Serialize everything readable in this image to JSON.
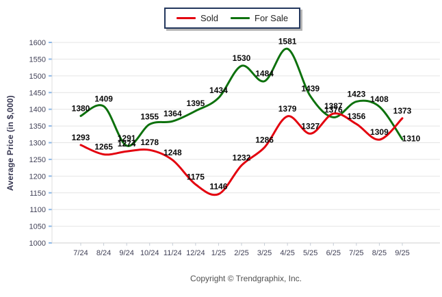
{
  "legend": {
    "items": [
      {
        "label": "Sold",
        "color": "#e3000e"
      },
      {
        "label": "For Sale",
        "color": "#0d710d"
      }
    ]
  },
  "footer": {
    "text": "Copyright © Trendgraphix, Inc."
  },
  "chart_data": {
    "type": "line",
    "title": "",
    "xlabel": "",
    "ylabel": "Average Price (in $,000)",
    "categories": [
      "7/24",
      "8/24",
      "9/24",
      "10/24",
      "11/24",
      "12/24",
      "1/25",
      "2/25",
      "3/25",
      "4/25",
      "5/25",
      "6/25",
      "7/25",
      "8/25",
      "9/25"
    ],
    "series": [
      {
        "name": "Sold",
        "color": "#e3000e",
        "values": [
          1293,
          1265,
          1274,
          1278,
          1248,
          1175,
          1146,
          1232,
          1286,
          1379,
          1327,
          1387,
          1356,
          1309,
          1373
        ]
      },
      {
        "name": "For Sale",
        "color": "#0d710d",
        "values": [
          1380,
          1409,
          1291,
          1355,
          1364,
          1395,
          1434,
          1530,
          1484,
          1581,
          1439,
          1376,
          1423,
          1408,
          1310
        ]
      }
    ],
    "ylim": [
      1000,
      1600
    ],
    "ytick_step": 50,
    "grid": "horizontal",
    "legend_position": "top-center",
    "smooth": true,
    "point_labels": true,
    "label_offsets": {
      "1": {
        "14": [
          13,
          10
        ]
      }
    },
    "style": {
      "grid_color": "#e4e4e4",
      "axis_color": "#cfcfcf",
      "y_tick_color": "#8cb8e8",
      "x_tick_color": "#c5ccd6",
      "tick_text_color": "#3f3f55",
      "value_label_color": "#0a0a0a"
    }
  }
}
